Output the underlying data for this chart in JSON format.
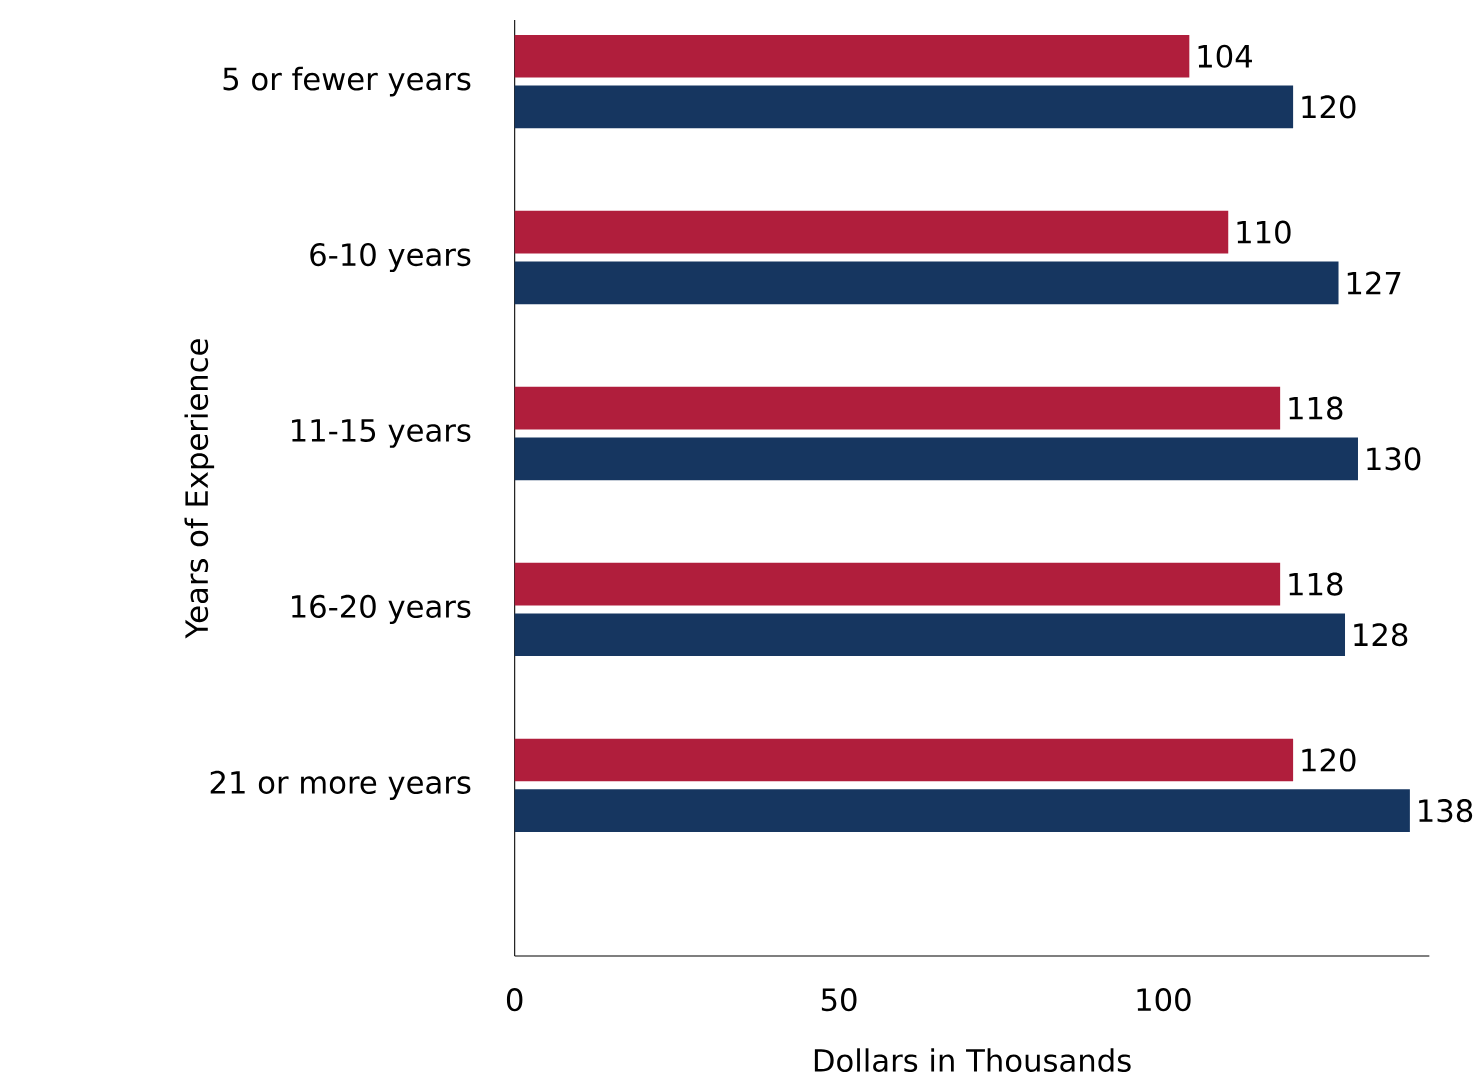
{
  "chart_data": {
    "type": "bar",
    "orientation": "horizontal",
    "xlabel": "Dollars in Thousands",
    "ylabel": "Years of Experience",
    "categories": [
      "5 or fewer years",
      "6-10 years",
      "11-15 years",
      "16-20 years",
      "21 or more years"
    ],
    "series": [
      {
        "color": "#b01e3c",
        "values": [
          104,
          110,
          118,
          118,
          120
        ]
      },
      {
        "color": "#163660",
        "values": [
          120,
          127,
          130,
          128,
          138
        ]
      }
    ],
    "xlim": [
      0,
      141
    ],
    "xticks": [
      0,
      50,
      100
    ],
    "data_labels": true,
    "grid": false
  }
}
